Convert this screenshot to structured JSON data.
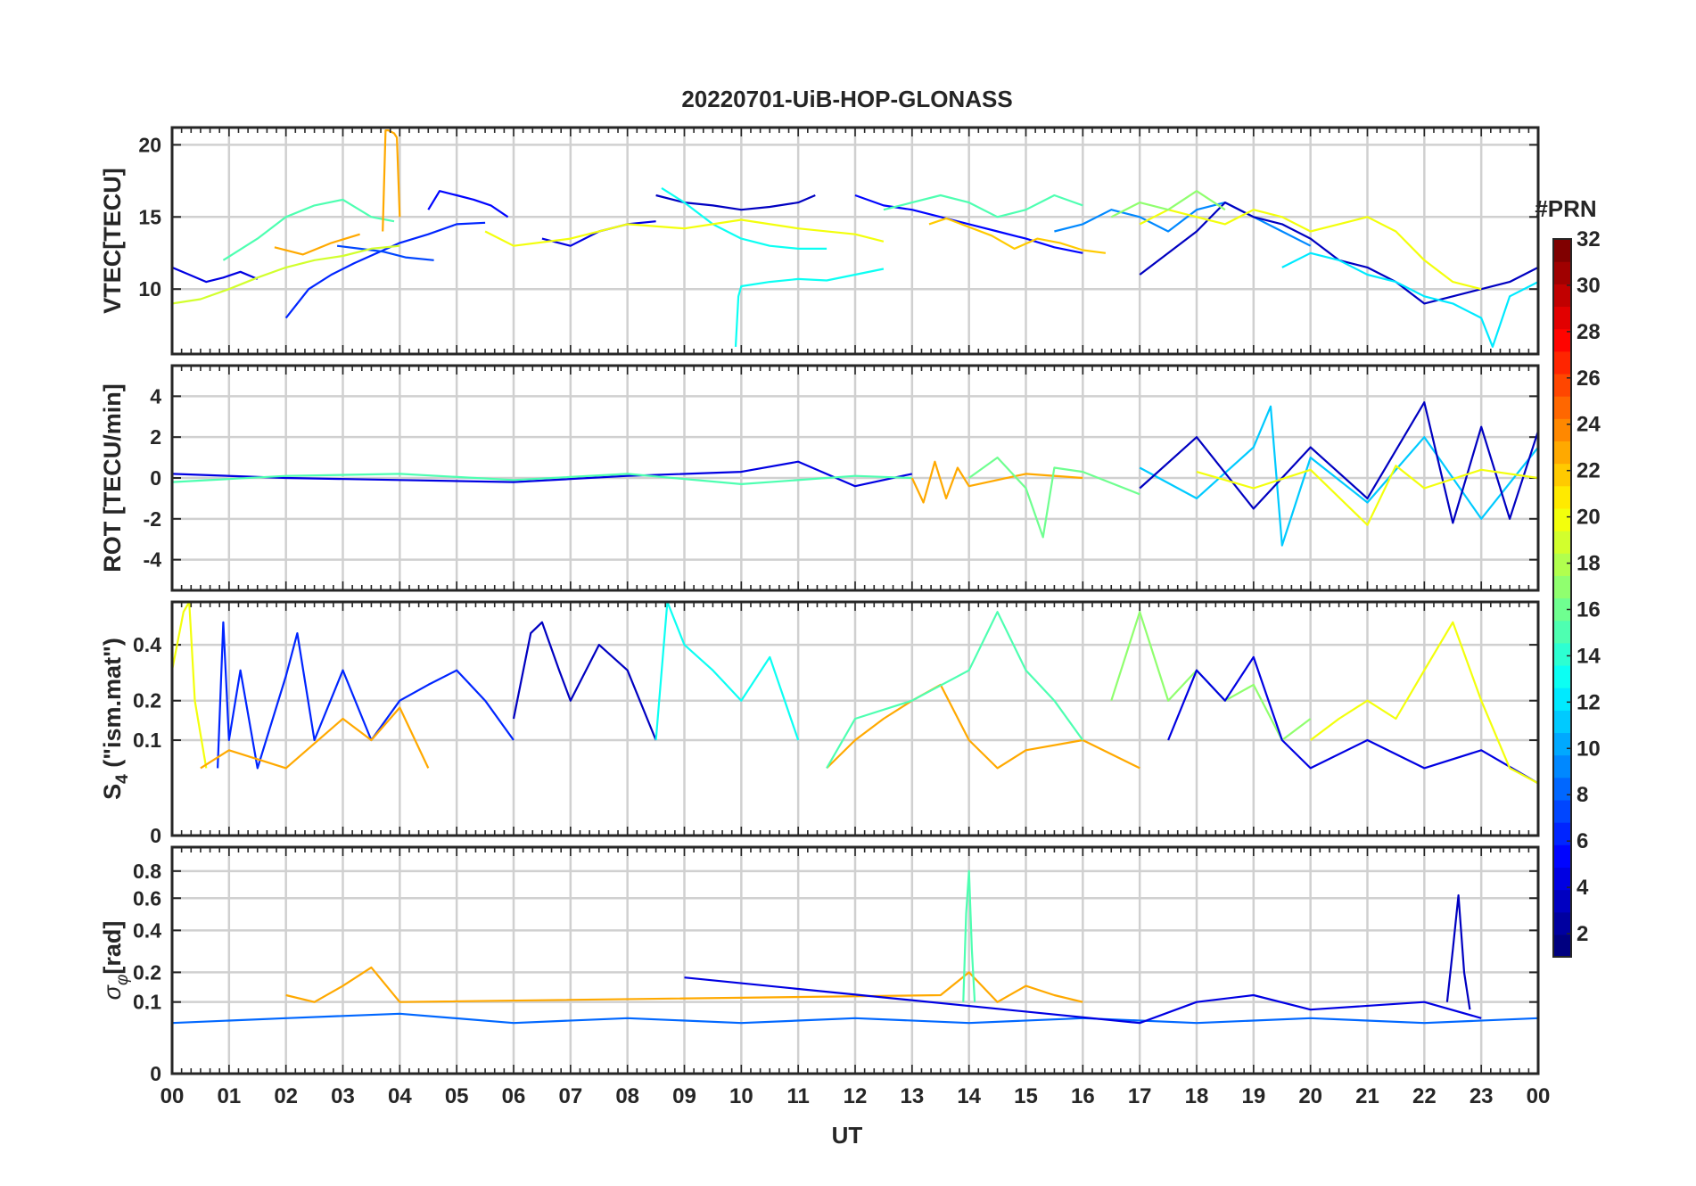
{
  "title": "20220701-UiB-HOP-GLONASS",
  "x_axis": {
    "label": "UT",
    "ticks": [
      "00",
      "01",
      "02",
      "03",
      "04",
      "05",
      "06",
      "07",
      "08",
      "09",
      "10",
      "11",
      "12",
      "13",
      "14",
      "15",
      "16",
      "17",
      "18",
      "19",
      "20",
      "21",
      "22",
      "23",
      "00"
    ]
  },
  "colorbar": {
    "title": "#PRN",
    "range": [
      1,
      32
    ],
    "ticks": [
      2,
      4,
      6,
      8,
      10,
      12,
      14,
      16,
      18,
      20,
      22,
      24,
      26,
      28,
      30,
      32
    ],
    "colormap": "jet"
  },
  "panels": [
    {
      "ylabel": "VTEC[TECU]",
      "ylim": [
        5.5,
        21.2
      ],
      "yticks": [
        10,
        15,
        20
      ],
      "ytick_labels": [
        "10",
        "15",
        "20"
      ]
    },
    {
      "ylabel": "ROT [TECU/min]",
      "ylim": [
        -5.5,
        5.5
      ],
      "yticks": [
        -4,
        -2,
        0,
        2,
        4
      ],
      "ytick_labels": [
        "-4",
        "-2",
        "0",
        "2",
        "4"
      ]
    },
    {
      "ylabel_main": "S",
      "ylabel_sub": "4",
      "ylabel_rest": " (\"ism.mat\")",
      "ylim": [
        0,
        0.6
      ],
      "yticks": [
        0,
        0.1,
        0.2,
        0.4
      ],
      "ytick_labels": [
        "0",
        "0.1",
        "0.2",
        "0.4"
      ],
      "scale": "sqrt"
    },
    {
      "ylabel_main": "σ",
      "ylabel_sub": "φ",
      "ylabel_rest": "[rad]",
      "ylim": [
        0,
        1.0
      ],
      "yticks": [
        0,
        0.1,
        0.2,
        0.4,
        0.6,
        0.8
      ],
      "ytick_labels": [
        "0",
        "0.1",
        "0.2",
        "0.4",
        "0.6",
        "0.8"
      ],
      "scale": "sqrt"
    }
  ],
  "chart_data": [
    {
      "type": "line",
      "panel": "VTEC",
      "xlabel": "UT",
      "ylabel": "VTEC[TECU]",
      "ylim": [
        5.5,
        21.2
      ],
      "series": [
        {
          "prn": 4,
          "x": [
            0.0,
            0.3,
            0.6,
            0.9,
            1.2,
            1.5
          ],
          "y": [
            11.5,
            11.0,
            10.5,
            10.8,
            11.2,
            10.7
          ]
        },
        {
          "prn": 6,
          "x": [
            2.0,
            2.4,
            2.8,
            3.2,
            3.6,
            4.0,
            4.5,
            5.0,
            5.5
          ],
          "y": [
            8.0,
            10.0,
            11.0,
            11.8,
            12.5,
            13.2,
            13.8,
            14.5,
            14.6
          ]
        },
        {
          "prn": 7,
          "x": [
            2.9,
            3.3,
            3.7,
            4.1,
            4.6
          ],
          "y": [
            13.0,
            12.8,
            12.6,
            12.2,
            12.0
          ]
        },
        {
          "prn": 5,
          "x": [
            4.5,
            4.7,
            5.0,
            5.3,
            5.6,
            5.9
          ],
          "y": [
            15.5,
            16.8,
            16.5,
            16.2,
            15.8,
            15.0
          ]
        },
        {
          "prn": 15,
          "x": [
            0.9,
            1.5,
            2.0,
            2.5,
            3.0,
            3.5,
            3.9
          ],
          "y": [
            12.0,
            13.5,
            15.0,
            15.8,
            16.2,
            15.0,
            14.7
          ]
        },
        {
          "prn": 19,
          "x": [
            0.0,
            0.5,
            1.0,
            1.5,
            2.0,
            2.5,
            3.0,
            3.5,
            4.0
          ],
          "y": [
            9.0,
            9.3,
            10.0,
            10.8,
            11.5,
            12.0,
            12.3,
            12.8,
            13.0
          ]
        },
        {
          "prn": 23,
          "x": [
            1.8,
            2.3,
            2.8,
            3.3
          ],
          "y": [
            12.9,
            12.4,
            13.2,
            13.8
          ]
        },
        {
          "prn": 23,
          "x": [
            3.7,
            3.75,
            3.8,
            3.9,
            3.95,
            4.0
          ],
          "y": [
            14.0,
            21.0,
            21.0,
            20.8,
            20.5,
            15.0
          ]
        },
        {
          "prn": 4,
          "x": [
            6.5,
            7.0,
            7.5,
            8.0,
            8.5
          ],
          "y": [
            13.5,
            13.0,
            14.0,
            14.5,
            14.7
          ]
        },
        {
          "prn": 3,
          "x": [
            8.5,
            9.0,
            9.5,
            10.0,
            10.5,
            11.0,
            11.3
          ],
          "y": [
            16.5,
            16.0,
            15.8,
            15.5,
            15.7,
            16.0,
            16.5
          ]
        },
        {
          "prn": 13,
          "x": [
            8.6,
            9.0,
            9.5,
            10.0,
            10.5,
            11.0,
            11.5
          ],
          "y": [
            17.0,
            16.0,
            14.5,
            13.5,
            13.0,
            12.8,
            12.8
          ]
        },
        {
          "prn": 13,
          "x": [
            9.9,
            9.95,
            10.0,
            10.5,
            11.0,
            11.5,
            12.0,
            12.5
          ],
          "y": [
            6.0,
            9.5,
            10.2,
            10.5,
            10.7,
            10.6,
            11.0,
            11.4
          ]
        },
        {
          "prn": 20,
          "x": [
            5.5,
            6.0,
            7.0,
            8.0,
            9.0,
            10.0,
            11.0,
            12.0,
            12.5
          ],
          "y": [
            14.0,
            13.0,
            13.5,
            14.5,
            14.2,
            14.8,
            14.2,
            13.8,
            13.3
          ]
        },
        {
          "prn": 5,
          "x": [
            12.0,
            12.5,
            13.0,
            13.5,
            14.0,
            14.5,
            15.0,
            15.5,
            16.0
          ],
          "y": [
            16.5,
            15.8,
            15.5,
            15.0,
            14.5,
            14.0,
            13.5,
            12.9,
            12.5
          ]
        },
        {
          "prn": 22,
          "x": [
            13.3,
            13.6,
            14.0,
            14.4,
            14.8,
            15.2,
            15.6,
            16.0,
            16.4
          ],
          "y": [
            14.5,
            14.9,
            14.3,
            13.7,
            12.8,
            13.5,
            13.2,
            12.7,
            12.5
          ]
        },
        {
          "prn": 15,
          "x": [
            12.5,
            13.0,
            13.5,
            14.0,
            14.5,
            15.0,
            15.5,
            16.0
          ],
          "y": [
            15.5,
            16.0,
            16.5,
            16.0,
            15.0,
            15.5,
            16.5,
            15.8
          ]
        },
        {
          "prn": 9,
          "x": [
            15.5,
            16.0,
            16.5,
            17.0,
            17.5,
            18.0,
            18.5,
            19.0,
            19.5,
            20.0
          ],
          "y": [
            14.0,
            14.5,
            15.5,
            15.0,
            14.0,
            15.5,
            16.0,
            15.0,
            14.0,
            13.0
          ]
        },
        {
          "prn": 3,
          "x": [
            17.0,
            17.5,
            18.0,
            18.5,
            19.0,
            19.5,
            20.0,
            20.5,
            21.0,
            21.5,
            22.0,
            22.5,
            23.0,
            23.5,
            24.0
          ],
          "y": [
            11.0,
            12.5,
            14.0,
            16.0,
            15.0,
            14.5,
            13.5,
            12.0,
            11.5,
            10.5,
            9.0,
            9.5,
            10.0,
            10.5,
            11.5
          ]
        },
        {
          "prn": 20,
          "x": [
            17.0,
            17.5,
            18.0,
            18.5,
            19.0,
            19.5,
            20.0,
            20.5,
            21.0,
            21.5,
            22.0,
            22.5,
            23.0
          ],
          "y": [
            14.5,
            15.5,
            15.0,
            14.5,
            15.5,
            15.0,
            14.0,
            14.5,
            15.0,
            14.0,
            12.0,
            10.5,
            10.0
          ]
        },
        {
          "prn": 12,
          "x": [
            19.5,
            20.0,
            20.5,
            21.0,
            21.5,
            22.0,
            22.5,
            23.0,
            23.2,
            23.5,
            24.0
          ],
          "y": [
            11.5,
            12.5,
            12.0,
            11.0,
            10.5,
            9.5,
            9.0,
            8.0,
            6.0,
            9.5,
            10.5
          ]
        },
        {
          "prn": 17,
          "x": [
            16.5,
            17.0,
            17.5,
            18.0,
            18.5
          ],
          "y": [
            15.0,
            16.0,
            15.5,
            16.8,
            15.5
          ]
        }
      ]
    },
    {
      "type": "line",
      "panel": "ROT",
      "xlabel": "UT",
      "ylabel": "ROT [TECU/min]",
      "ylim": [
        -5.5,
        5.5
      ],
      "series": [
        {
          "prn": 4,
          "x": [
            0.0,
            2.0,
            4.0,
            6.0,
            8.0,
            10.0,
            11.0,
            12.0,
            13.0
          ],
          "y": [
            0.2,
            0.0,
            -0.1,
            -0.2,
            0.1,
            0.3,
            0.8,
            -0.4,
            0.2
          ]
        },
        {
          "prn": 15,
          "x": [
            0.0,
            2.0,
            4.0,
            6.0,
            8.0,
            10.0,
            12.0,
            13.0
          ],
          "y": [
            -0.2,
            0.1,
            0.2,
            -0.1,
            0.2,
            -0.3,
            0.1,
            0.0
          ]
        },
        {
          "prn": 23,
          "x": [
            13.0,
            13.2,
            13.4,
            13.6,
            13.8,
            14.0,
            15.0,
            16.0
          ],
          "y": [
            0.0,
            -1.2,
            0.8,
            -1.0,
            0.5,
            -0.4,
            0.2,
            0.0
          ]
        },
        {
          "prn": 16,
          "x": [
            14.0,
            14.5,
            15.0,
            15.3,
            15.5,
            16.0,
            17.0
          ],
          "y": [
            0.0,
            1.0,
            -0.5,
            -2.9,
            0.5,
            0.3,
            -0.8
          ]
        },
        {
          "prn": 11,
          "x": [
            17.0,
            18.0,
            19.0,
            19.3,
            19.5,
            20.0,
            21.0,
            22.0,
            23.0,
            24.0
          ],
          "y": [
            0.5,
            -1.0,
            1.5,
            3.5,
            -3.3,
            1.0,
            -1.2,
            2.0,
            -2.0,
            1.5
          ]
        },
        {
          "prn": 3,
          "x": [
            17.0,
            18.0,
            19.0,
            20.0,
            21.0,
            22.0,
            22.5,
            23.0,
            23.5,
            24.0
          ],
          "y": [
            -0.5,
            2.0,
            -1.5,
            1.5,
            -1.0,
            3.7,
            -2.2,
            2.5,
            -2.0,
            2.3
          ]
        },
        {
          "prn": 20,
          "x": [
            18.0,
            19.0,
            20.0,
            21.0,
            21.5,
            22.0,
            23.0,
            24.0
          ],
          "y": [
            0.3,
            -0.5,
            0.4,
            -2.3,
            0.6,
            -0.5,
            0.4,
            0.0
          ]
        }
      ]
    },
    {
      "type": "line",
      "panel": "S4",
      "xlabel": "UT",
      "ylabel": "S4 (\"ism.mat\")",
      "ylim": [
        0,
        0.6
      ],
      "series": [
        {
          "prn": 20,
          "x": [
            0.0,
            0.2,
            0.3,
            0.4,
            0.6
          ],
          "y": [
            0.3,
            0.55,
            0.6,
            0.2,
            0.05
          ]
        },
        {
          "prn": 6,
          "x": [
            0.8,
            0.9,
            1.0,
            1.2,
            1.5,
            2.0,
            2.2,
            2.5,
            3.0,
            3.5,
            4.0,
            4.5,
            5.0,
            5.5,
            6.0
          ],
          "y": [
            0.05,
            0.5,
            0.1,
            0.3,
            0.05,
            0.28,
            0.45,
            0.1,
            0.3,
            0.1,
            0.2,
            0.25,
            0.3,
            0.2,
            0.1
          ]
        },
        {
          "prn": 3,
          "x": [
            6.0,
            6.3,
            6.5,
            6.8,
            7.0,
            7.5,
            8.0,
            8.5
          ],
          "y": [
            0.15,
            0.45,
            0.5,
            0.3,
            0.2,
            0.4,
            0.3,
            0.1
          ]
        },
        {
          "prn": 13,
          "x": [
            8.5,
            8.7,
            9.0,
            9.5,
            10.0,
            10.5,
            11.0
          ],
          "y": [
            0.1,
            0.6,
            0.4,
            0.3,
            0.2,
            0.35,
            0.1
          ]
        },
        {
          "prn": 23,
          "x": [
            0.5,
            1.0,
            2.0,
            3.0,
            3.5,
            4.0,
            4.5
          ],
          "y": [
            0.05,
            0.08,
            0.05,
            0.15,
            0.1,
            0.18,
            0.05
          ]
        },
        {
          "prn": 23,
          "x": [
            11.5,
            12.0,
            12.5,
            13.0,
            13.5,
            14.0,
            14.5,
            15.0,
            16.0,
            17.0
          ],
          "y": [
            0.05,
            0.1,
            0.15,
            0.2,
            0.25,
            0.1,
            0.05,
            0.08,
            0.1,
            0.05
          ]
        },
        {
          "prn": 15,
          "x": [
            11.5,
            12.0,
            13.0,
            14.0,
            14.5,
            15.0,
            15.5,
            16.0
          ],
          "y": [
            0.05,
            0.15,
            0.2,
            0.3,
            0.55,
            0.3,
            0.2,
            0.1
          ]
        },
        {
          "prn": 17,
          "x": [
            16.5,
            17.0,
            17.5,
            18.0,
            18.5,
            19.0,
            19.5,
            20.0
          ],
          "y": [
            0.2,
            0.55,
            0.2,
            0.3,
            0.2,
            0.25,
            0.1,
            0.15
          ]
        },
        {
          "prn": 4,
          "x": [
            17.5,
            18.0,
            18.5,
            19.0,
            19.5,
            20.0,
            21.0,
            22.0,
            23.0,
            24.0
          ],
          "y": [
            0.1,
            0.3,
            0.2,
            0.35,
            0.1,
            0.05,
            0.1,
            0.05,
            0.08,
            0.03
          ]
        },
        {
          "prn": 20,
          "x": [
            20.0,
            20.5,
            21.0,
            21.5,
            22.0,
            22.5,
            23.0,
            23.5,
            24.0
          ],
          "y": [
            0.1,
            0.15,
            0.2,
            0.15,
            0.3,
            0.5,
            0.2,
            0.05,
            0.03
          ]
        }
      ]
    },
    {
      "type": "line",
      "panel": "sigma_phi",
      "xlabel": "UT",
      "ylabel": "σφ[rad]",
      "ylim": [
        0,
        1.0
      ],
      "series": [
        {
          "prn": 8,
          "x": [
            0.0,
            2.0,
            4.0,
            6.0,
            8.0,
            10.0,
            12.0,
            14.0,
            16.0,
            18.0,
            20.0,
            22.0,
            24.0
          ],
          "y": [
            0.05,
            0.06,
            0.07,
            0.05,
            0.06,
            0.05,
            0.06,
            0.05,
            0.06,
            0.05,
            0.06,
            0.05,
            0.06
          ]
        },
        {
          "prn": 23,
          "x": [
            2.0,
            2.5,
            3.0,
            3.5,
            4.0,
            13.5,
            14.0,
            14.5,
            15.0,
            15.5,
            16.0
          ],
          "y": [
            0.12,
            0.1,
            0.15,
            0.22,
            0.1,
            0.12,
            0.2,
            0.1,
            0.15,
            0.12,
            0.1
          ]
        },
        {
          "prn": 15,
          "x": [
            13.9,
            13.95,
            14.0,
            14.05,
            14.1
          ],
          "y": [
            0.1,
            0.5,
            0.8,
            0.3,
            0.1
          ]
        },
        {
          "prn": 3,
          "x": [
            22.4,
            22.5,
            22.6,
            22.7,
            22.8
          ],
          "y": [
            0.1,
            0.3,
            0.62,
            0.2,
            0.08
          ]
        },
        {
          "prn": 4,
          "x": [
            9.0,
            17.0,
            18.0,
            19.0,
            20.0,
            22.0,
            23.0
          ],
          "y": [
            0.18,
            0.05,
            0.1,
            0.12,
            0.08,
            0.1,
            0.06
          ]
        }
      ]
    }
  ]
}
